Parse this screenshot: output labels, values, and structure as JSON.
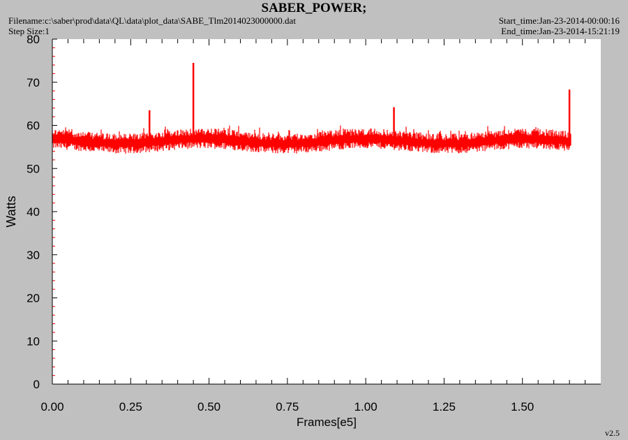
{
  "header": {
    "title": "SABER_POWER;",
    "filename": "Filename:c:\\saber\\prod\\data\\QL\\data\\plot_data\\SABE_Tlm2014023000000.dat",
    "step_size": "Step Size:1",
    "start_time": "Start_time:Jan-23-2014-00:00:16",
    "end_time": "End_time:Jan-23-2014-15:21:19"
  },
  "version": "v2.5",
  "colors": {
    "background": "#c0c0c0",
    "plot_area": "#ffffff",
    "series": "#ff0000",
    "axis": "#000000",
    "tick_marks": "#ff0000"
  },
  "chart_data": {
    "type": "line",
    "title": "SABER_POWER;",
    "xlabel": "Frames[e5]",
    "ylabel": "Watts",
    "xlim": [
      0,
      1.75
    ],
    "ylim": [
      0,
      80
    ],
    "xticks": [
      "0.00",
      "0.25",
      "0.50",
      "0.75",
      "1.00",
      "1.25",
      "1.50"
    ],
    "yticks": [
      "0",
      "10",
      "20",
      "30",
      "40",
      "50",
      "60",
      "70",
      "80"
    ],
    "grid": false,
    "series": [
      {
        "color": "#ff0000",
        "x_start": 0.0,
        "x_end": 1.655,
        "mean": 56.3,
        "band_low": 54.5,
        "band_high": 58.2,
        "spikes": [
          {
            "x": 0.31,
            "y": 63.5
          },
          {
            "x": 0.45,
            "y": 74.5
          },
          {
            "x": 1.09,
            "y": 64.2
          },
          {
            "x": 1.65,
            "y": 68.3
          }
        ]
      }
    ]
  }
}
